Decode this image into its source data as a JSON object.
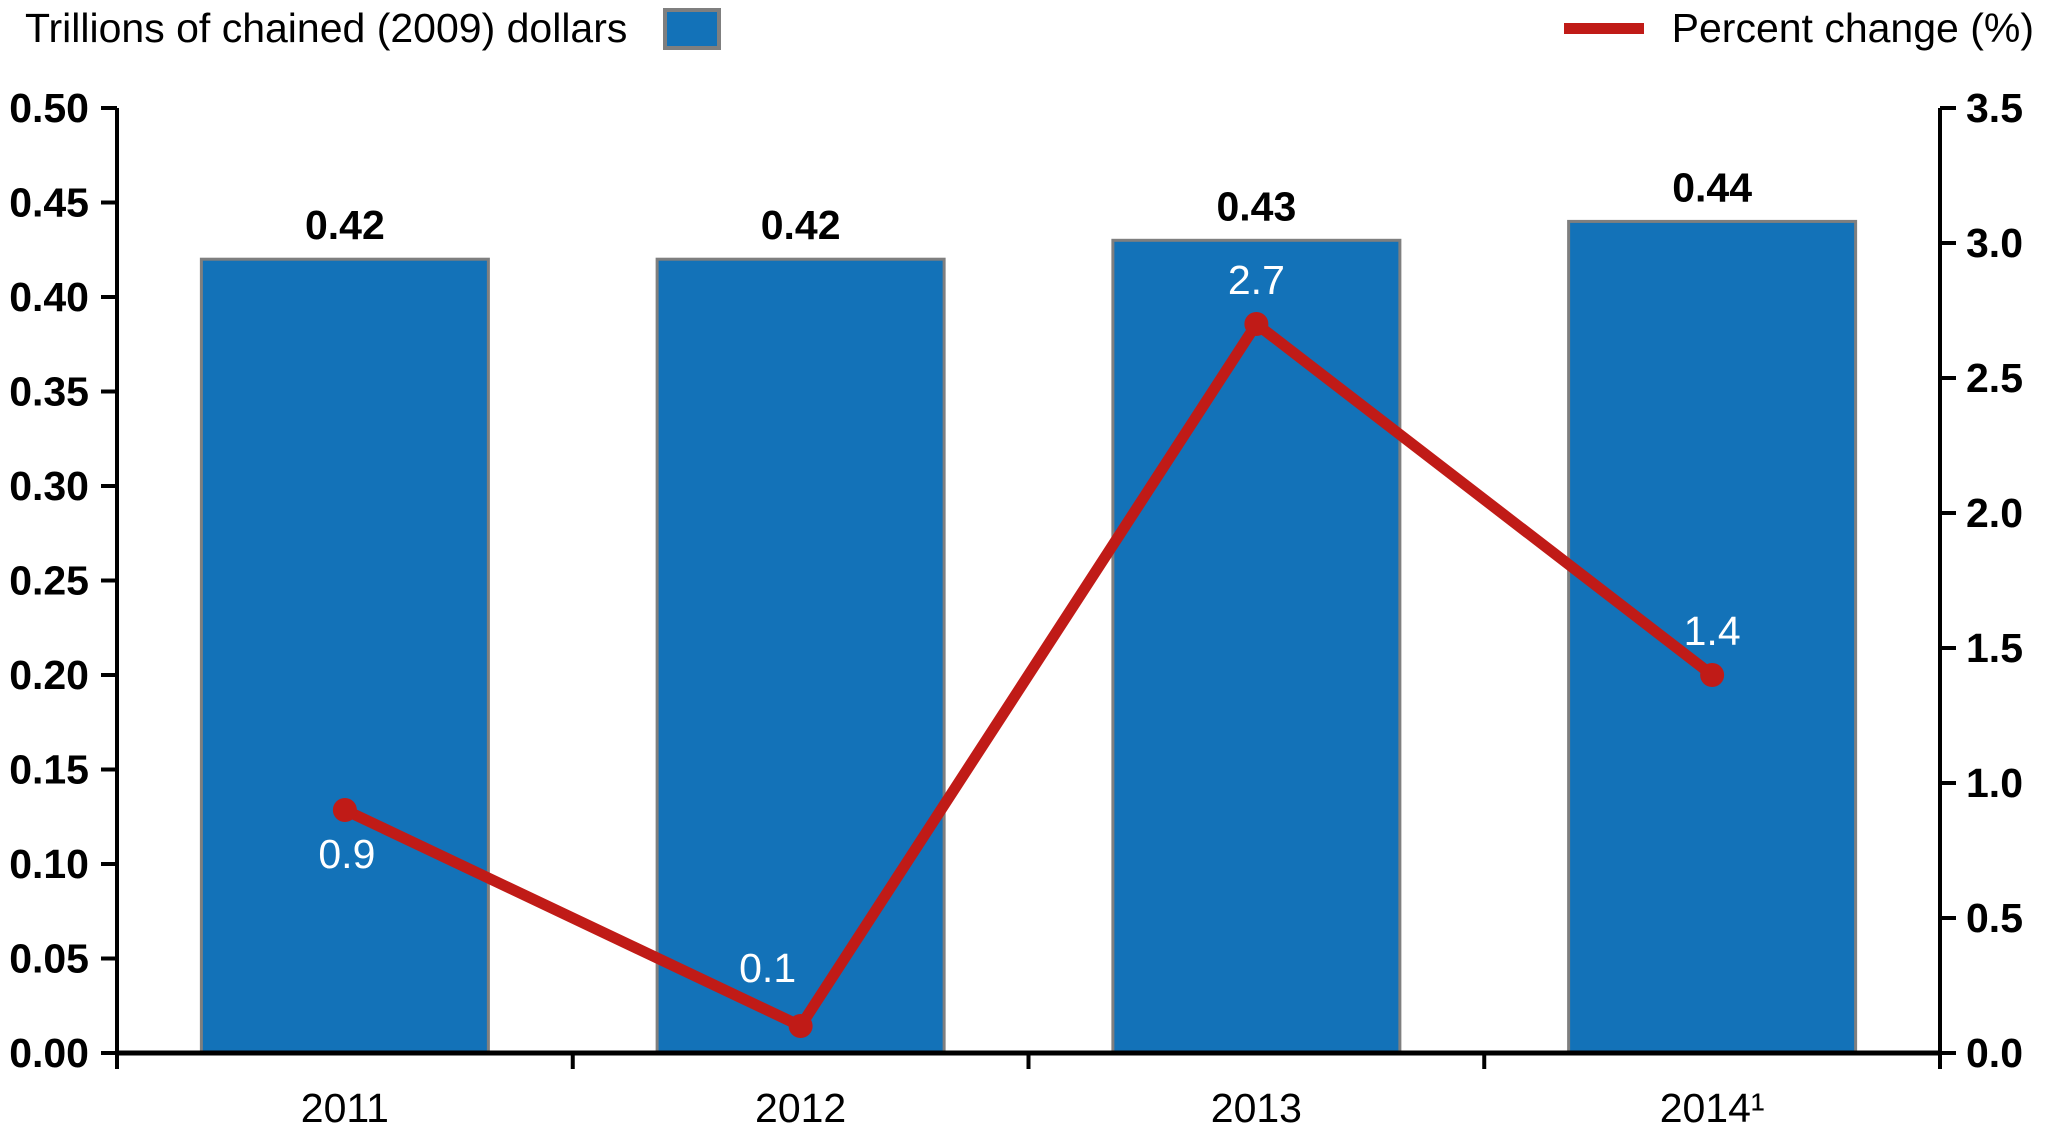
{
  "legend_left": {
    "label": "Trillions of chained (2009) dollars"
  },
  "legend_right": {
    "label": "Percent change (%)"
  },
  "colors": {
    "bar": "#1372b8",
    "bar_border": "#7f7f7f",
    "line": "#c01b17",
    "axis": "#000000",
    "bar_value_text": "#000000",
    "point_value_text": "#ffffff",
    "tick_text": "#000000"
  },
  "chart_data": {
    "type": "bar",
    "subtype": "bar+line combo, dual axis",
    "categories": [
      "2011",
      "2012",
      "2013",
      "2014¹"
    ],
    "series": [
      {
        "name": "Trillions of chained (2009) dollars",
        "type": "bar",
        "axis": "left",
        "values": [
          0.42,
          0.42,
          0.43,
          0.44
        ],
        "value_labels": [
          "0.42",
          "0.42",
          "0.43",
          "0.44"
        ]
      },
      {
        "name": "Percent change (%)",
        "type": "line",
        "axis": "right",
        "values": [
          0.9,
          0.1,
          2.7,
          1.4
        ],
        "value_labels": [
          "0.9",
          "0.1",
          "2.7",
          "1.4"
        ]
      }
    ],
    "left_axis": {
      "min": 0.0,
      "max": 0.5,
      "tick_labels": [
        "0.00",
        "0.05",
        "0.10",
        "0.15",
        "0.20",
        "0.25",
        "0.30",
        "0.35",
        "0.40",
        "0.45",
        "0.50"
      ]
    },
    "right_axis": {
      "min": 0.0,
      "max": 3.5,
      "tick_labels": [
        "0.0",
        "0.5",
        "1.0",
        "1.5",
        "2.0",
        "2.5",
        "3.0",
        "3.5"
      ]
    },
    "grid": false,
    "legend_position": "top (left: bars, right: line)",
    "title": "",
    "xlabel": "",
    "ylabel_left": "Trillions of chained (2009) dollars",
    "ylabel_right": "Percent change (%)"
  }
}
